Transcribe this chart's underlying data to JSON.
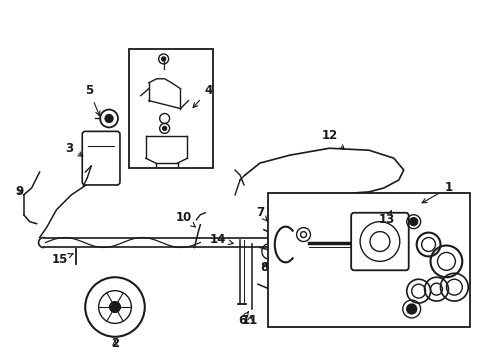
{
  "bg_color": "#ffffff",
  "line_color": "#1a1a1a",
  "fig_width": 4.89,
  "fig_height": 3.6,
  "dpi": 100,
  "font_size": 8.5,
  "line_width": 1.0
}
